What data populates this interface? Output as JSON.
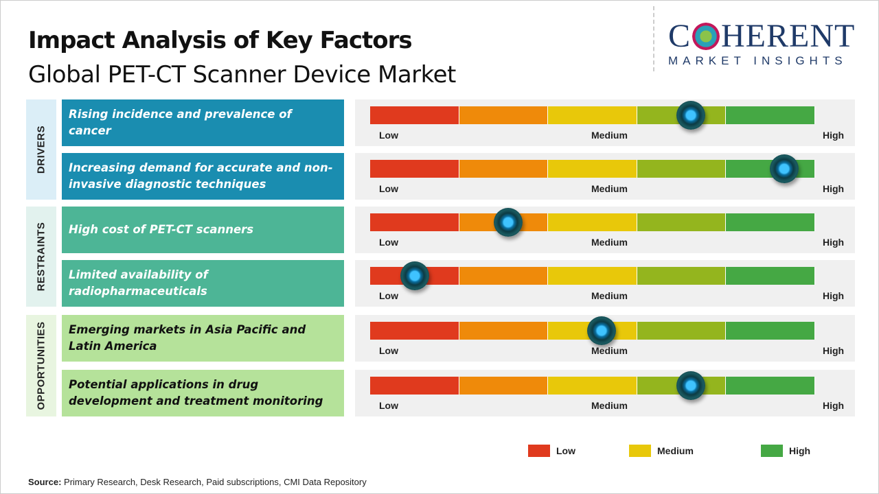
{
  "title": "Impact Analysis of Key Factors",
  "subtitle": "Global PET-CT Scanner Device Market",
  "logo": {
    "main": "COHERENT",
    "sub": "MARKET INSIGHTS"
  },
  "colors": {
    "drivers": "#1a8db0",
    "restraints": "#4db596",
    "opportunities": "#b5e29a",
    "low": "#e03a1e",
    "low_medium": "#ef8a0a",
    "medium": "#e8c80a",
    "medium_high": "#94b51e",
    "high": "#45a844"
  },
  "scale_labels": {
    "low": "Low",
    "medium": "Medium",
    "high": "High"
  },
  "chart_data": {
    "type": "gauge",
    "scale": [
      "Low",
      "Medium",
      "High"
    ],
    "range": [
      0,
      1
    ],
    "groups": [
      {
        "name": "DRIVERS",
        "items": [
          {
            "factor": "Rising incidence and prevalence of cancer",
            "impact": 0.72
          },
          {
            "factor": "Increasing demand for accurate and non-invasive diagnostic techniques",
            "impact": 0.93
          }
        ]
      },
      {
        "name": "RESTRAINTS",
        "items": [
          {
            "factor": "High cost of PET-CT scanners",
            "impact": 0.31
          },
          {
            "factor": "Limited availability of radiopharmaceuticals",
            "impact": 0.1
          }
        ]
      },
      {
        "name": "OPPORTUNITIES",
        "items": [
          {
            "factor": "Emerging markets in Asia Pacific and Latin America",
            "impact": 0.52
          },
          {
            "factor": "Potential applications in drug development and treatment monitoring",
            "impact": 0.72
          }
        ]
      }
    ],
    "legend": [
      {
        "label": "Low",
        "color": "#e03a1e"
      },
      {
        "label": "Medium",
        "color": "#e8c80a"
      },
      {
        "label": "High",
        "color": "#45a844"
      }
    ],
    "legend_position": "bottom-right"
  },
  "source": {
    "label": "Source:",
    "text": " Primary Research, Desk Research, Paid subscriptions, CMI Data Repository"
  }
}
